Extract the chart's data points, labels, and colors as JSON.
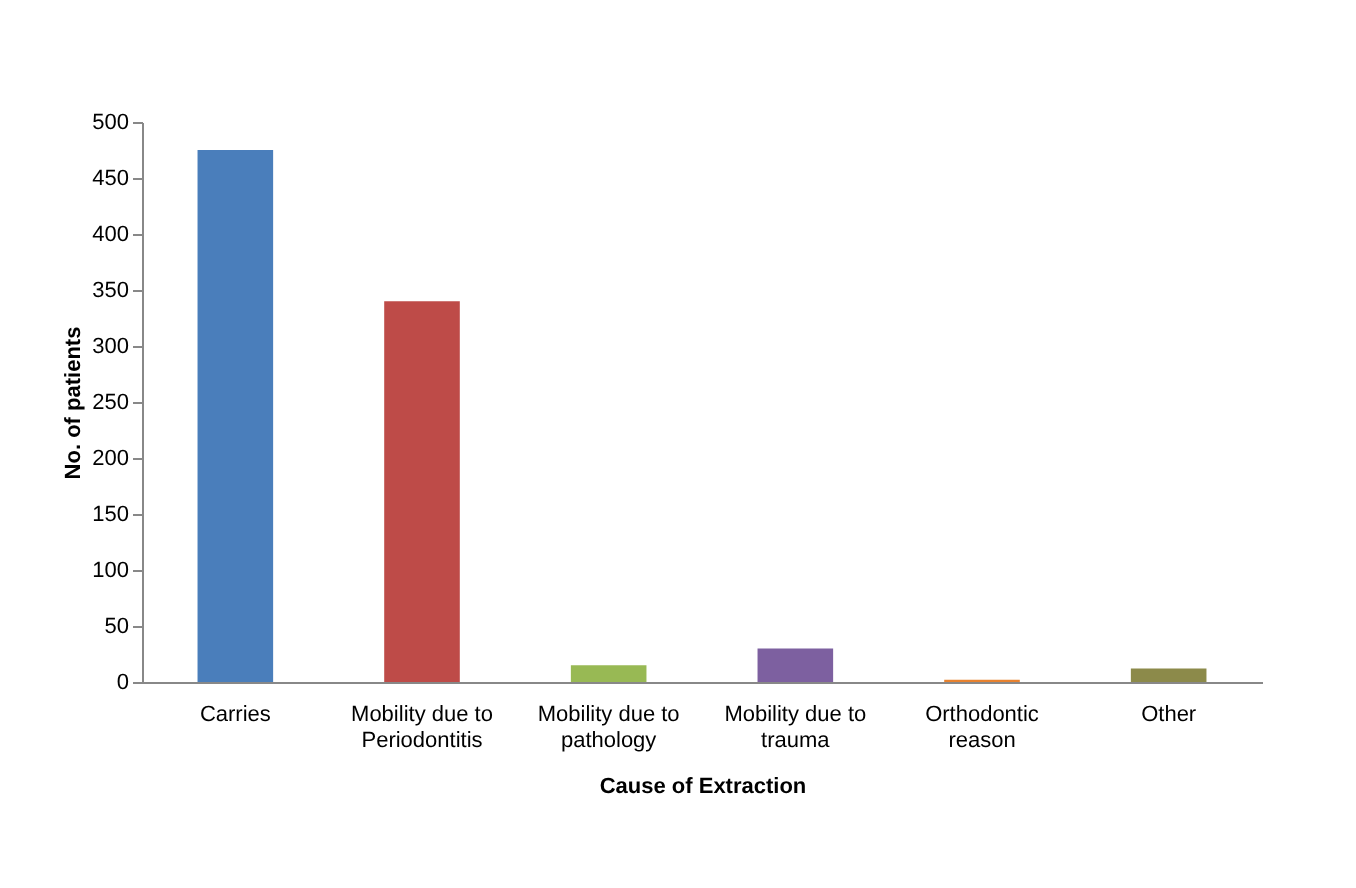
{
  "chart_data": {
    "type": "bar",
    "xlabel": "Cause of Extraction",
    "ylabel": "No. of patients",
    "categories": [
      "Carries",
      "Mobility due to Periodontitis",
      "Mobility due to pathology",
      "Mobility due to trauma",
      "Orthodontic reason",
      "Other"
    ],
    "values": [
      475,
      340,
      15,
      30,
      2,
      12
    ],
    "colors": [
      "#4a7ebb",
      "#be4b48",
      "#98b954",
      "#7d60a0",
      "#e8822f",
      "#8c8a4a"
    ],
    "ylim": [
      0,
      500
    ],
    "yticks": [
      0,
      50,
      100,
      150,
      200,
      250,
      300,
      350,
      400,
      450,
      500
    ],
    "grid": false
  }
}
